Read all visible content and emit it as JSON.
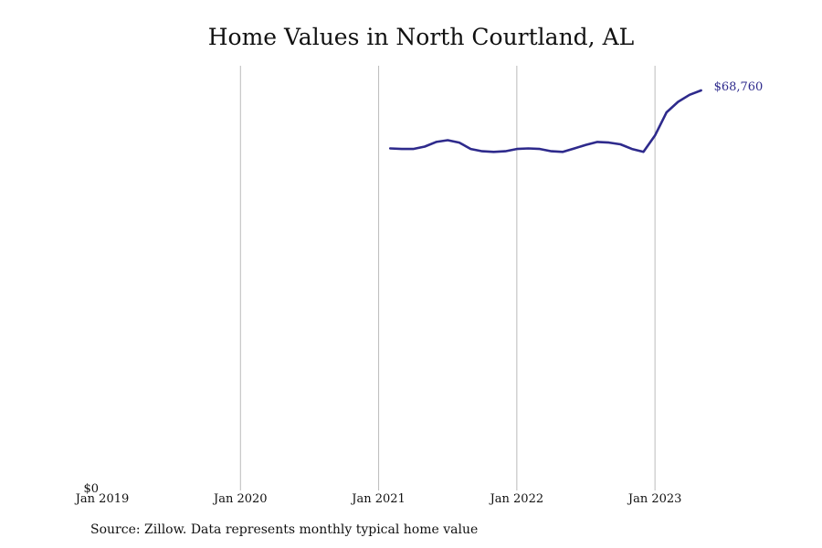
{
  "chart_data": {
    "type": "line",
    "title": "Home Values in North Courtland, AL",
    "xlabel": "",
    "ylabel": "",
    "x_ticks": [
      "Jan 2019",
      "Jan 2020",
      "Jan 2021",
      "Jan 2022",
      "Jan 2023"
    ],
    "y_ticks": [
      "$0"
    ],
    "xlim": [
      "2019-01",
      "2023-09"
    ],
    "ylim": [
      0,
      73000
    ],
    "grid": "vertical",
    "colors": {
      "line": "#2e2a8c",
      "grid": "#bbbbbb",
      "text": "#111111",
      "end_label": "#2e2a8c"
    },
    "series": [
      {
        "end_label": "$68,760",
        "points": [
          [
            "2021-02",
            58800
          ],
          [
            "2021-03",
            58700
          ],
          [
            "2021-04",
            58700
          ],
          [
            "2021-05",
            59100
          ],
          [
            "2021-06",
            59900
          ],
          [
            "2021-07",
            60200
          ],
          [
            "2021-08",
            59800
          ],
          [
            "2021-09",
            58700
          ],
          [
            "2021-10",
            58300
          ],
          [
            "2021-11",
            58200
          ],
          [
            "2021-12",
            58300
          ],
          [
            "2022-01",
            58700
          ],
          [
            "2022-02",
            58800
          ],
          [
            "2022-03",
            58700
          ],
          [
            "2022-04",
            58300
          ],
          [
            "2022-05",
            58200
          ],
          [
            "2022-06",
            58800
          ],
          [
            "2022-07",
            59400
          ],
          [
            "2022-08",
            59900
          ],
          [
            "2022-09",
            59800
          ],
          [
            "2022-10",
            59500
          ],
          [
            "2022-11",
            58700
          ],
          [
            "2022-12",
            58200
          ],
          [
            "2023-01",
            61000
          ],
          [
            "2023-02",
            65000
          ],
          [
            "2023-03",
            66800
          ],
          [
            "2023-04",
            68000
          ],
          [
            "2023-05",
            68760
          ]
        ]
      }
    ]
  },
  "footer": {
    "source": "Source: Zillow. Data represents monthly typical home value"
  }
}
